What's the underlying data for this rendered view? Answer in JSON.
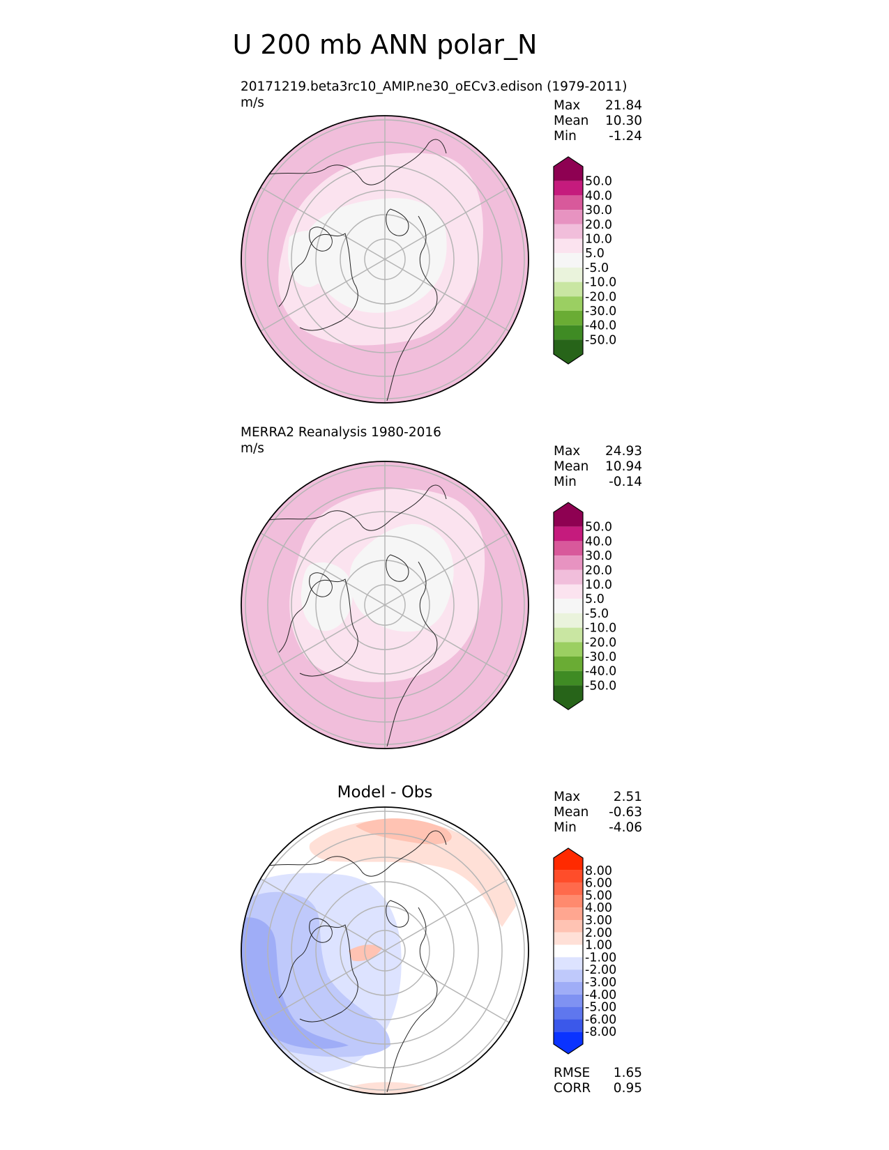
{
  "figure": {
    "title": "U 200 mb ANN polar_N"
  },
  "panels": [
    {
      "title_line1": "20171219.beta3rc10_AMIP.ne30_oECv3.edison (1979-2011)",
      "title_line2": "m/s",
      "center_title": "",
      "stats": [
        {
          "label": "Max",
          "value": "21.84"
        },
        {
          "label": "Mean",
          "value": "10.30"
        },
        {
          "label": "Min",
          "value": "-1.24"
        }
      ],
      "extra_stats": [],
      "colorbar": {
        "labels": [
          "50.0",
          "40.0",
          "30.0",
          "20.0",
          "10.0",
          "5.0",
          "-5.0",
          "-10.0",
          "-20.0",
          "-30.0",
          "-40.0",
          "-50.0"
        ],
        "colors": [
          "#8e0152",
          "#c51b7d",
          "#d8599b",
          "#e793c1",
          "#f1bedb",
          "#fbe3ef",
          "#f6f6f6",
          "#eaf3dc",
          "#c9e6a2",
          "#9bcf62",
          "#6aac34",
          "#3f8b24",
          "#276419"
        ]
      }
    },
    {
      "title_line1": "MERRA2 Reanalysis 1980-2016",
      "title_line2": "m/s",
      "center_title": "",
      "stats": [
        {
          "label": "Max",
          "value": "24.93"
        },
        {
          "label": "Mean",
          "value": "10.94"
        },
        {
          "label": "Min",
          "value": "-0.14"
        }
      ],
      "extra_stats": [],
      "colorbar": {
        "labels": [
          "50.0",
          "40.0",
          "30.0",
          "20.0",
          "10.0",
          "5.0",
          "-5.0",
          "-10.0",
          "-20.0",
          "-30.0",
          "-40.0",
          "-50.0"
        ],
        "colors": [
          "#8e0152",
          "#c51b7d",
          "#d8599b",
          "#e793c1",
          "#f1bedb",
          "#fbe3ef",
          "#f6f6f6",
          "#eaf3dc",
          "#c9e6a2",
          "#9bcf62",
          "#6aac34",
          "#3f8b24",
          "#276419"
        ]
      }
    },
    {
      "title_line1": "",
      "title_line2": "",
      "center_title": "Model - Obs",
      "stats": [
        {
          "label": "Max",
          "value": "2.51"
        },
        {
          "label": "Mean",
          "value": "-0.63"
        },
        {
          "label": "Min",
          "value": "-4.06"
        }
      ],
      "extra_stats": [
        {
          "label": "RMSE",
          "value": "1.65"
        },
        {
          "label": "CORR",
          "value": "0.95"
        }
      ],
      "colorbar": {
        "labels": [
          "8.00",
          "6.00",
          "5.00",
          "4.00",
          "3.00",
          "2.00",
          "1.00",
          "-1.00",
          "-2.00",
          "-3.00",
          "-4.00",
          "-5.00",
          "-6.00",
          "-8.00"
        ],
        "colors": [
          "#ff2a00",
          "#ff4d2a",
          "#ff6a4c",
          "#ff8a6e",
          "#ffa690",
          "#ffc3b3",
          "#ffe0d7",
          "#ffffff",
          "#dde3ff",
          "#bfc9fb",
          "#9fadf7",
          "#7f92f2",
          "#5f77ee",
          "#3b58ea",
          "#0a33ff"
        ]
      }
    }
  ],
  "chart_data": [
    {
      "type": "heatmap",
      "projection": "north polar stereographic",
      "title": "20171219.beta3rc10_AMIP.ne30_oECv3.edison (1979-2011)",
      "units": "m/s",
      "stats": {
        "max": 21.84,
        "mean": 10.3,
        "min": -1.24
      },
      "levels": [
        -50,
        -40,
        -30,
        -20,
        -10,
        -5,
        5,
        10,
        20,
        30,
        40,
        50
      ],
      "colorbar_extend": "both"
    },
    {
      "type": "heatmap",
      "projection": "north polar stereographic",
      "title": "MERRA2 Reanalysis 1980-2016",
      "units": "m/s",
      "stats": {
        "max": 24.93,
        "mean": 10.94,
        "min": -0.14
      },
      "levels": [
        -50,
        -40,
        -30,
        -20,
        -10,
        -5,
        5,
        10,
        20,
        30,
        40,
        50
      ],
      "colorbar_extend": "both"
    },
    {
      "type": "heatmap",
      "projection": "north polar stereographic",
      "title": "Model - Obs",
      "stats": {
        "max": 2.51,
        "mean": -0.63,
        "min": -4.06,
        "rmse": 1.65,
        "corr": 0.95
      },
      "levels": [
        -8,
        -6,
        -5,
        -4,
        -3,
        -2,
        -1,
        1,
        2,
        3,
        4,
        5,
        6,
        8
      ],
      "colorbar_extend": "both"
    }
  ]
}
